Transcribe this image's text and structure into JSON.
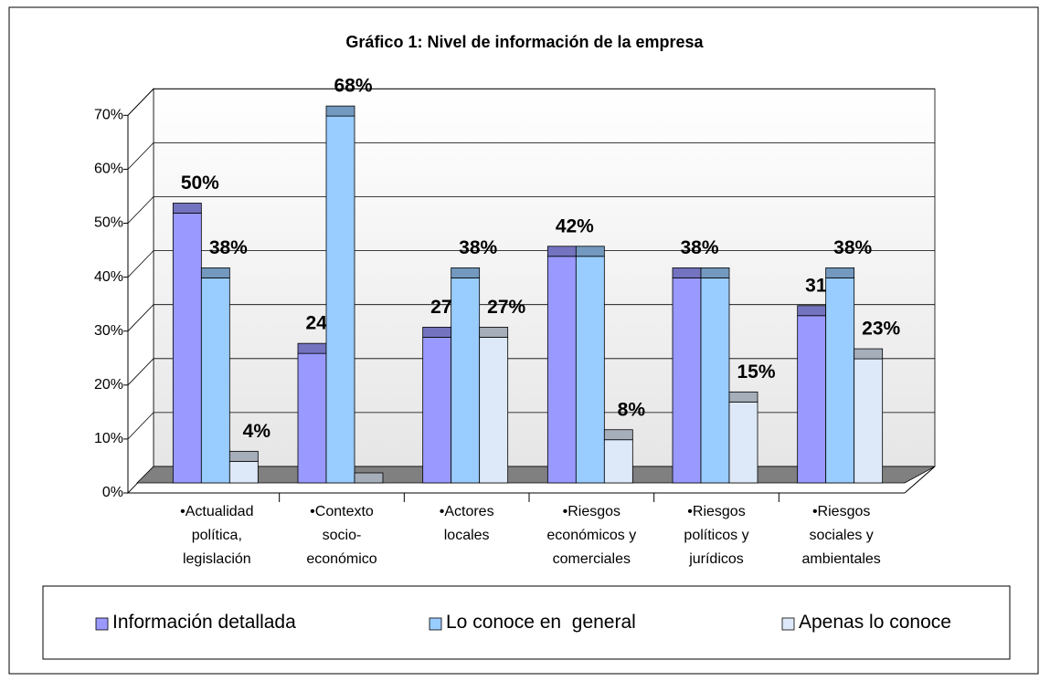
{
  "chart_data": {
    "type": "bar3d",
    "title": "Gráfico 1: Nivel de información de la empresa",
    "categories": [
      "•Actualidad política, legislación",
      "•Contexto socio-económico",
      "•Actores locales",
      "•Riesgos económicos y comerciales",
      "•Riesgos políticos y jurídicos",
      "•Riesgos sociales y ambientales"
    ],
    "series": [
      {
        "name": "Información detallada",
        "color": "#9999ff",
        "values": [
          50,
          24,
          27,
          42,
          38,
          31
        ],
        "value_labels": [
          "50%",
          "24%",
          "27%",
          "42%",
          "38%",
          "31%"
        ]
      },
      {
        "name": "Lo conoce en  general",
        "color": "#99ccff",
        "values": [
          38,
          68,
          38,
          42,
          38,
          38
        ],
        "value_labels": [
          "38%",
          "68%",
          "38%",
          null,
          null,
          "38%"
        ]
      },
      {
        "name": "Apenas lo conoce",
        "color": "#dde8f8",
        "values": [
          4,
          0,
          27,
          8,
          15,
          23
        ],
        "value_labels": [
          "4%",
          null,
          "27%",
          "8%",
          "15%",
          "23%"
        ]
      }
    ],
    "ylim": [
      0,
      70
    ],
    "yticks": [
      {
        "value": 0,
        "label": "0%"
      },
      {
        "value": 10,
        "label": "10%"
      },
      {
        "value": 20,
        "label": "20%"
      },
      {
        "value": 30,
        "label": "30%"
      },
      {
        "value": 40,
        "label": "40%"
      },
      {
        "value": 50,
        "label": "50%"
      },
      {
        "value": 60,
        "label": "60%"
      },
      {
        "value": 70,
        "label": "70%"
      }
    ],
    "grid": true,
    "legend": "bottom"
  }
}
